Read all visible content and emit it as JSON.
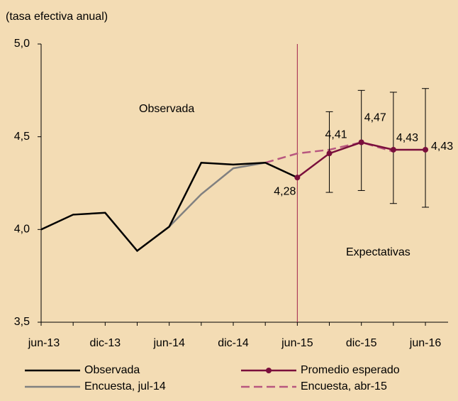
{
  "chart_data": {
    "type": "line",
    "ylabel": "(tasa efectiva anual)",
    "annotations": [
      "Observada",
      "Expectativas"
    ],
    "categories": [
      "jun-13",
      null,
      "dic-13",
      null,
      "jun-14",
      null,
      "dic-14",
      null,
      "jun-15",
      null,
      "dic-15",
      null,
      "jun-16"
    ],
    "vline": "jun-15",
    "vline_color": "#a0204a",
    "ylim": [
      3.5,
      5.0
    ],
    "yticks": [
      {
        "value": 3.5,
        "label": "3,5"
      },
      {
        "value": 4.0,
        "label": "4,0"
      },
      {
        "value": 4.5,
        "label": "4,5"
      },
      {
        "value": 5.0,
        "label": "5,0"
      }
    ],
    "series": [
      {
        "name": "Observada",
        "color": "#000000",
        "dash": false,
        "values": [
          4.0,
          4.08,
          4.09,
          3.885,
          4.015,
          4.36,
          4.35,
          4.36,
          4.28,
          null,
          null,
          null,
          null
        ]
      },
      {
        "name": "Promedio esperado",
        "color": "#7a0f3c",
        "dash": false,
        "markers": true,
        "values": [
          null,
          null,
          null,
          null,
          null,
          null,
          null,
          null,
          4.28,
          4.41,
          4.47,
          4.43,
          4.43
        ],
        "value_labels": [
          null,
          null,
          null,
          null,
          null,
          null,
          null,
          null,
          "4,28",
          "4,41",
          "4,47",
          "4,43",
          "4,43"
        ],
        "lower": [
          null,
          null,
          null,
          null,
          null,
          null,
          null,
          null,
          null,
          4.2,
          4.21,
          4.14,
          4.12
        ],
        "upper": [
          null,
          null,
          null,
          null,
          null,
          null,
          null,
          null,
          null,
          4.635,
          4.75,
          4.74,
          4.76
        ]
      },
      {
        "name": "Encuesta, jul-14",
        "color": "#808080",
        "dash": false,
        "values": [
          null,
          null,
          null,
          null,
          4.015,
          4.19,
          4.33,
          4.36,
          null,
          null,
          null,
          null,
          null
        ]
      },
      {
        "name": "Encuesta, abr-15",
        "color": "#b8577f",
        "dash": true,
        "values": [
          null,
          null,
          null,
          null,
          null,
          null,
          null,
          4.36,
          4.41,
          4.43,
          4.47,
          4.42,
          null
        ]
      }
    ]
  }
}
